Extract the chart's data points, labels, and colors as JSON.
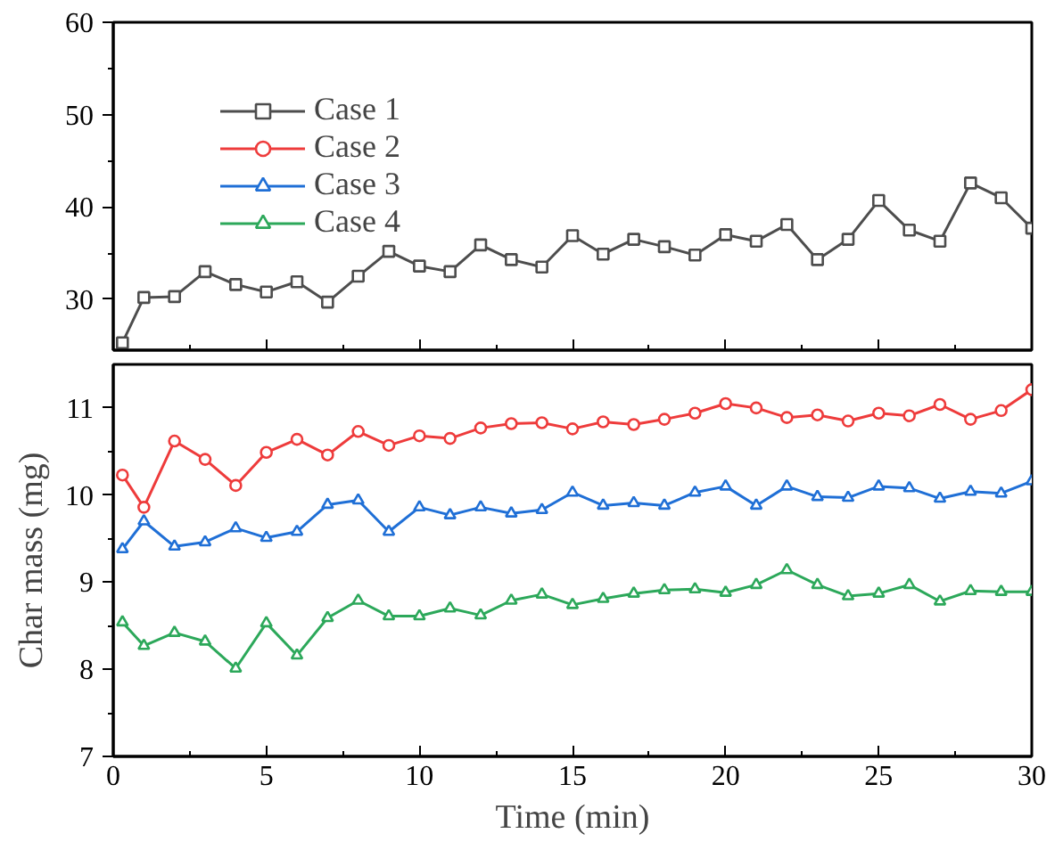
{
  "chart_data": [
    {
      "type": "line",
      "xlim": [
        0,
        30
      ],
      "xticks": [
        0,
        5,
        10,
        15,
        20,
        25,
        30
      ],
      "ylim": [
        24.5,
        60
      ],
      "yticks": [
        30,
        40,
        50,
        60
      ],
      "tick_labels": "y",
      "grid": false,
      "legend": "top left",
      "line_style": "solid",
      "x": [
        0.3,
        1,
        2,
        3,
        4,
        5,
        6,
        7,
        8,
        9,
        10,
        11,
        12,
        13,
        14,
        15,
        16,
        17,
        18,
        19,
        20,
        21,
        22,
        23,
        24,
        25,
        26,
        27,
        28,
        29,
        30
      ],
      "series": [
        {
          "name": "Case 1",
          "color": "#4d4d4d",
          "marker": "square",
          "values": [
            25.3,
            30.2,
            30.3,
            33.0,
            31.6,
            30.8,
            31.9,
            29.7,
            32.5,
            35.2,
            33.6,
            33.0,
            35.9,
            34.3,
            33.5,
            36.9,
            34.9,
            36.5,
            35.7,
            34.8,
            37.0,
            36.3,
            38.1,
            34.3,
            36.5,
            40.7,
            37.5,
            36.3,
            42.6,
            41.0,
            37.7
          ]
        }
      ]
    },
    {
      "type": "line",
      "xlabel": "Time (min)",
      "ylabel": "Char mass (mg)",
      "xlim": [
        0,
        30
      ],
      "xticks": [
        0,
        5,
        10,
        15,
        20,
        25,
        30
      ],
      "ylim": [
        7,
        11.5
      ],
      "yticks": [
        7,
        8,
        9,
        10,
        11
      ],
      "grid": false,
      "legend": "top",
      "line_style": "solid",
      "x": [
        0.3,
        1,
        2,
        3,
        4,
        5,
        6,
        7,
        8,
        9,
        10,
        11,
        12,
        13,
        14,
        15,
        16,
        17,
        18,
        19,
        20,
        21,
        22,
        23,
        24,
        25,
        26,
        27,
        28,
        29,
        30
      ],
      "series": [
        {
          "name": "Case 2",
          "color": "#ee3b3b",
          "marker": "circle",
          "values": [
            10.23,
            9.86,
            10.62,
            10.41,
            10.11,
            10.49,
            10.64,
            10.46,
            10.73,
            10.57,
            10.68,
            10.65,
            10.77,
            10.82,
            10.83,
            10.76,
            10.84,
            10.81,
            10.87,
            10.94,
            11.05,
            11.0,
            10.89,
            10.92,
            10.85,
            10.94,
            10.91,
            11.04,
            10.87,
            10.97,
            11.21
          ]
        },
        {
          "name": "Case 3",
          "color": "#1f6fd6",
          "marker": "triangle",
          "values": [
            9.38,
            9.7,
            9.41,
            9.46,
            9.62,
            9.51,
            9.58,
            9.89,
            9.94,
            9.58,
            9.86,
            9.77,
            9.86,
            9.79,
            9.83,
            10.03,
            9.88,
            9.91,
            9.88,
            10.03,
            10.1,
            9.88,
            10.1,
            9.98,
            9.97,
            10.1,
            10.08,
            9.96,
            10.04,
            10.02,
            10.16
          ]
        },
        {
          "name": "Case 4",
          "color": "#2ca85a",
          "marker": "triangle",
          "values": [
            8.54,
            8.27,
            8.42,
            8.32,
            8.01,
            8.53,
            8.16,
            8.59,
            8.79,
            8.61,
            8.61,
            8.7,
            8.62,
            8.79,
            8.86,
            8.74,
            8.81,
            8.87,
            8.91,
            8.92,
            8.88,
            8.97,
            9.14,
            8.97,
            8.84,
            8.87,
            8.97,
            8.78,
            8.9,
            8.89,
            8.89
          ]
        }
      ]
    }
  ]
}
